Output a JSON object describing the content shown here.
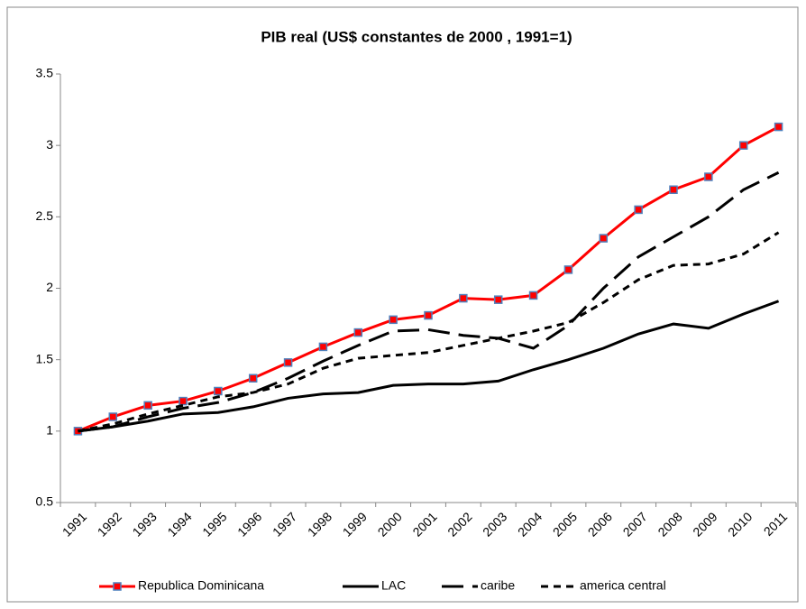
{
  "chart_data": {
    "type": "line",
    "title": "PIB real (US$ constantes de 2000 , 1991=1)",
    "categories": [
      "1991",
      "1992",
      "1993",
      "1994",
      "1995",
      "1996",
      "1997",
      "1998",
      "1999",
      "2000",
      "2001",
      "2002",
      "2003",
      "2004",
      "2005",
      "2006",
      "2007",
      "2008",
      "2009",
      "2010",
      "2011"
    ],
    "series": [
      {
        "name": "Republica Dominicana",
        "color": "#ff0000",
        "line_style": "solid",
        "marker": "square",
        "marker_color": "#4f81bd",
        "values": [
          1.0,
          1.1,
          1.18,
          1.21,
          1.28,
          1.37,
          1.48,
          1.59,
          1.69,
          1.78,
          1.81,
          1.93,
          1.92,
          1.95,
          2.13,
          2.35,
          2.55,
          2.69,
          2.78,
          3.0,
          3.13
        ]
      },
      {
        "name": "LAC",
        "color": "#000000",
        "line_style": "solid",
        "values": [
          1.0,
          1.03,
          1.07,
          1.12,
          1.13,
          1.17,
          1.23,
          1.26,
          1.27,
          1.32,
          1.33,
          1.33,
          1.35,
          1.43,
          1.5,
          1.58,
          1.68,
          1.75,
          1.72,
          1.82,
          1.91
        ]
      },
      {
        "name": "caribe",
        "color": "#000000",
        "line_style": "long-dash",
        "values": [
          1.0,
          1.03,
          1.1,
          1.16,
          1.2,
          1.27,
          1.37,
          1.49,
          1.6,
          1.7,
          1.71,
          1.67,
          1.65,
          1.58,
          1.74,
          2.0,
          2.22,
          2.36,
          2.5,
          2.69,
          2.81
        ]
      },
      {
        "name": "america central",
        "color": "#000000",
        "line_style": "short-dash",
        "values": [
          1.0,
          1.05,
          1.12,
          1.18,
          1.24,
          1.27,
          1.33,
          1.44,
          1.51,
          1.53,
          1.55,
          1.6,
          1.65,
          1.7,
          1.76,
          1.9,
          2.06,
          2.16,
          2.17,
          2.24,
          2.39
        ]
      }
    ],
    "ylim": [
      0.5,
      3.5
    ],
    "yticks": [
      0.5,
      1,
      1.5,
      2,
      2.5,
      3,
      3.5
    ],
    "grid": false,
    "legend": "bottom"
  }
}
